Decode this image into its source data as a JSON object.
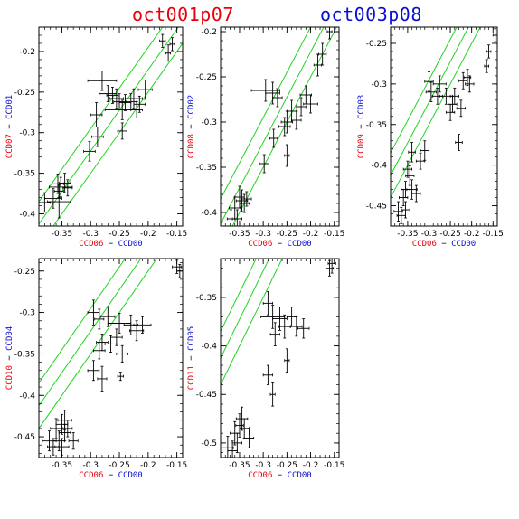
{
  "titles": {
    "left": {
      "text": "oct001p07",
      "color": "#e8000b"
    },
    "right": {
      "text": "oct003p08",
      "color": "#0a0fd0"
    }
  },
  "colors": {
    "red": "#e8000b",
    "blue": "#0a0fd0",
    "lines": "#21d321",
    "points": "#000000"
  },
  "chart_data": [
    {
      "type": "scatter",
      "xlabel": [
        {
          "text": "CCD06",
          "color": "red"
        },
        {
          "text": " − ",
          "color": "black"
        },
        {
          "text": "CCD00",
          "color": "blue"
        }
      ],
      "ylabel": [
        {
          "text": "CCD07",
          "color": "red"
        },
        {
          "text": " − ",
          "color": "black"
        },
        {
          "text": "CCD01",
          "color": "blue"
        }
      ],
      "xlim": [
        -0.39,
        -0.14
      ],
      "ylim": [
        -0.415,
        -0.17
      ],
      "xticks": [
        -0.35,
        -0.3,
        -0.25,
        -0.2,
        -0.15
      ],
      "xticklabels": [
        "-0.35",
        "-0.3",
        "-0.25",
        "-0.2",
        "-0.15"
      ],
      "yticks": [
        -0.4,
        -0.35,
        -0.3,
        -0.25,
        -0.2
      ],
      "yticklabels": [
        "-0.4",
        "-0.35",
        "-0.3",
        "-0.25",
        "-0.2"
      ],
      "lines": [
        {
          "slope": 1,
          "intercept": -0.05
        },
        {
          "slope": 1,
          "intercept": -0.0225
        },
        {
          "slope": 1,
          "intercept": 0.005
        }
      ],
      "points": [
        [
          -0.175,
          -0.187,
          0.005,
          0.008
        ],
        [
          -0.158,
          -0.191,
          0.004,
          0.008
        ],
        [
          -0.165,
          -0.202,
          0.004,
          0.01
        ],
        [
          -0.28,
          -0.236,
          0.025,
          0.012
        ],
        [
          -0.27,
          -0.252,
          0.015,
          0.01
        ],
        [
          -0.262,
          -0.254,
          0.01,
          0.01
        ],
        [
          -0.255,
          -0.258,
          0.012,
          0.012
        ],
        [
          -0.25,
          -0.262,
          0.01,
          0.01
        ],
        [
          -0.24,
          -0.263,
          0.01,
          0.01
        ],
        [
          -0.23,
          -0.262,
          0.01,
          0.01
        ],
        [
          -0.225,
          -0.258,
          0.015,
          0.012
        ],
        [
          -0.215,
          -0.265,
          0.01,
          0.01
        ],
        [
          -0.205,
          -0.247,
          0.012,
          0.012
        ],
        [
          -0.22,
          -0.272,
          0.01,
          0.01
        ],
        [
          -0.245,
          -0.272,
          0.03,
          0.012
        ],
        [
          -0.29,
          -0.278,
          0.01,
          0.015
        ],
        [
          -0.245,
          -0.298,
          0.008,
          0.01
        ],
        [
          -0.288,
          -0.305,
          0.01,
          0.012
        ],
        [
          -0.302,
          -0.323,
          0.01,
          0.012
        ],
        [
          -0.357,
          -0.363,
          0.01,
          0.012
        ],
        [
          -0.352,
          -0.367,
          0.02,
          0.012
        ],
        [
          -0.345,
          -0.362,
          0.01,
          0.012
        ],
        [
          -0.34,
          -0.368,
          0.008,
          0.01
        ],
        [
          -0.355,
          -0.372,
          0.008,
          0.008
        ],
        [
          -0.38,
          -0.386,
          0.01,
          0.012
        ],
        [
          -0.355,
          -0.385,
          0.02,
          0.02
        ],
        [
          -0.365,
          -0.381,
          0.015,
          0.012
        ]
      ]
    },
    {
      "type": "scatter",
      "xlabel": [
        {
          "text": "CCD06",
          "color": "red"
        },
        {
          "text": " − ",
          "color": "black"
        },
        {
          "text": "CCD00",
          "color": "blue"
        }
      ],
      "ylabel": [
        {
          "text": "CCD08",
          "color": "red"
        },
        {
          "text": " − ",
          "color": "black"
        },
        {
          "text": "CCD02",
          "color": "blue"
        }
      ],
      "xlim": [
        -0.39,
        -0.14
      ],
      "ylim": [
        -0.415,
        -0.195
      ],
      "xticks": [
        -0.35,
        -0.3,
        -0.25,
        -0.2,
        -0.15
      ],
      "xticklabels": [
        "-0.35",
        "-0.3",
        "-0.25",
        "-0.2",
        "-0.15"
      ],
      "yticks": [
        -0.4,
        -0.35,
        -0.3,
        -0.25,
        -0.2
      ],
      "yticklabels": [
        "-0.4",
        "-0.35",
        "-0.3",
        "-0.25",
        "-0.2"
      ],
      "lines": [
        {
          "slope": 1,
          "intercept": -0.05
        },
        {
          "slope": 1,
          "intercept": -0.0225
        },
        {
          "slope": 1,
          "intercept": 0.005
        }
      ],
      "points": [
        [
          -0.16,
          -0.2,
          0.005,
          0.008
        ],
        [
          -0.175,
          -0.225,
          0.008,
          0.012
        ],
        [
          -0.185,
          -0.237,
          0.008,
          0.012
        ],
        [
          -0.295,
          -0.265,
          0.03,
          0.012
        ],
        [
          -0.28,
          -0.268,
          0.015,
          0.012
        ],
        [
          -0.27,
          -0.273,
          0.01,
          0.01
        ],
        [
          -0.21,
          -0.27,
          0.012,
          0.01
        ],
        [
          -0.2,
          -0.28,
          0.015,
          0.01
        ],
        [
          -0.22,
          -0.283,
          0.01,
          0.01
        ],
        [
          -0.24,
          -0.288,
          0.01,
          0.012
        ],
        [
          -0.25,
          -0.3,
          0.012,
          0.012
        ],
        [
          -0.23,
          -0.298,
          0.01,
          0.01
        ],
        [
          -0.255,
          -0.305,
          0.012,
          0.01
        ],
        [
          -0.278,
          -0.318,
          0.008,
          0.01
        ],
        [
          -0.25,
          -0.337,
          0.005,
          0.012
        ],
        [
          -0.298,
          -0.346,
          0.01,
          0.01
        ],
        [
          -0.35,
          -0.383,
          0.01,
          0.012
        ],
        [
          -0.345,
          -0.387,
          0.012,
          0.012
        ],
        [
          -0.34,
          -0.39,
          0.01,
          0.01
        ],
        [
          -0.36,
          -0.395,
          0.012,
          0.012
        ],
        [
          -0.368,
          -0.407,
          0.008,
          0.01
        ],
        [
          -0.355,
          -0.407,
          0.01,
          0.01
        ],
        [
          -0.335,
          -0.385,
          0.01,
          0.008
        ]
      ]
    },
    {
      "type": "scatter",
      "xlabel": [
        {
          "text": "CCD06",
          "color": "red"
        },
        {
          "text": " − ",
          "color": "black"
        },
        {
          "text": "CCD00",
          "color": "blue"
        }
      ],
      "ylabel": [
        {
          "text": "CCD09",
          "color": "red"
        },
        {
          "text": " − ",
          "color": "black"
        },
        {
          "text": "CCD03",
          "color": "blue"
        }
      ],
      "xlim": [
        -0.39,
        -0.14
      ],
      "ylim": [
        -0.475,
        -0.23
      ],
      "xticks": [
        -0.35,
        -0.3,
        -0.25,
        -0.2,
        -0.15
      ],
      "xticklabels": [
        "-0.35",
        "-0.3",
        "-0.25",
        "-0.2",
        "-0.15"
      ],
      "yticks": [
        -0.45,
        -0.4,
        -0.35,
        -0.3,
        -0.25
      ],
      "yticklabels": [
        "-0.45",
        "-0.4",
        "-0.35",
        "-0.3",
        "-0.25"
      ],
      "lines": [
        {
          "slope": 1,
          "intercept": -0.05
        },
        {
          "slope": 1,
          "intercept": -0.0225
        },
        {
          "slope": 1,
          "intercept": 0.005
        }
      ],
      "points": [
        [
          -0.145,
          -0.24,
          0.005,
          0.008
        ],
        [
          -0.16,
          -0.26,
          0.005,
          0.008
        ],
        [
          -0.165,
          -0.278,
          0.005,
          0.008
        ],
        [
          -0.21,
          -0.292,
          0.008,
          0.01
        ],
        [
          -0.22,
          -0.296,
          0.01,
          0.01
        ],
        [
          -0.205,
          -0.3,
          0.01,
          0.01
        ],
        [
          -0.3,
          -0.297,
          0.01,
          0.012
        ],
        [
          -0.275,
          -0.3,
          0.015,
          0.01
        ],
        [
          -0.295,
          -0.31,
          0.012,
          0.012
        ],
        [
          -0.28,
          -0.315,
          0.012,
          0.01
        ],
        [
          -0.26,
          -0.315,
          0.015,
          0.01
        ],
        [
          -0.24,
          -0.315,
          0.01,
          0.01
        ],
        [
          -0.245,
          -0.325,
          0.01,
          0.01
        ],
        [
          -0.25,
          -0.335,
          0.01,
          0.01
        ],
        [
          -0.225,
          -0.33,
          0.01,
          0.01
        ],
        [
          -0.23,
          -0.372,
          0.008,
          0.01
        ],
        [
          -0.31,
          -0.382,
          0.01,
          0.012
        ],
        [
          -0.34,
          -0.384,
          0.008,
          0.012
        ],
        [
          -0.32,
          -0.395,
          0.01,
          0.01
        ],
        [
          -0.35,
          -0.405,
          0.01,
          0.01
        ],
        [
          -0.345,
          -0.413,
          0.01,
          0.012
        ],
        [
          -0.34,
          -0.43,
          0.012,
          0.012
        ],
        [
          -0.33,
          -0.435,
          0.01,
          0.01
        ],
        [
          -0.355,
          -0.43,
          0.01,
          0.01
        ],
        [
          -0.36,
          -0.44,
          0.01,
          0.01
        ],
        [
          -0.372,
          -0.457,
          0.01,
          0.012
        ],
        [
          -0.365,
          -0.462,
          0.01,
          0.01
        ],
        [
          -0.355,
          -0.455,
          0.01,
          0.01
        ]
      ]
    },
    {
      "type": "scatter",
      "xlabel": [
        {
          "text": "CCD06",
          "color": "red"
        },
        {
          "text": " − ",
          "color": "black"
        },
        {
          "text": "CCD00",
          "color": "blue"
        }
      ],
      "ylabel": [
        {
          "text": "CCD10",
          "color": "red"
        },
        {
          "text": " − ",
          "color": "black"
        },
        {
          "text": "CCD04",
          "color": "blue"
        }
      ],
      "xlim": [
        -0.39,
        -0.14
      ],
      "ylim": [
        -0.475,
        -0.235
      ],
      "xticks": [
        -0.35,
        -0.3,
        -0.25,
        -0.2,
        -0.15
      ],
      "xticklabels": [
        "-0.35",
        "-0.3",
        "-0.25",
        "-0.2",
        "-0.15"
      ],
      "yticks": [
        -0.45,
        -0.4,
        -0.35,
        -0.3,
        -0.25
      ],
      "yticklabels": [
        "-0.45",
        "-0.4",
        "-0.35",
        "-0.3",
        "-0.25"
      ],
      "lines": [
        {
          "slope": 1,
          "intercept": -0.05
        },
        {
          "slope": 1,
          "intercept": -0.0225
        },
        {
          "slope": 1,
          "intercept": 0.005
        }
      ],
      "points": [
        [
          -0.15,
          -0.245,
          0.008,
          0.008
        ],
        [
          -0.145,
          -0.25,
          0.005,
          0.008
        ],
        [
          -0.295,
          -0.3,
          0.01,
          0.015
        ],
        [
          -0.285,
          -0.308,
          0.008,
          0.012
        ],
        [
          -0.27,
          -0.305,
          0.012,
          0.012
        ],
        [
          -0.25,
          -0.313,
          0.02,
          0.012
        ],
        [
          -0.23,
          -0.315,
          0.012,
          0.012
        ],
        [
          -0.21,
          -0.315,
          0.015,
          0.01
        ],
        [
          -0.22,
          -0.322,
          0.012,
          0.012
        ],
        [
          -0.255,
          -0.33,
          0.01,
          0.01
        ],
        [
          -0.265,
          -0.338,
          0.01,
          0.01
        ],
        [
          -0.28,
          -0.336,
          0.01,
          0.01
        ],
        [
          -0.285,
          -0.346,
          0.01,
          0.01
        ],
        [
          -0.245,
          -0.35,
          0.01,
          0.01
        ],
        [
          -0.295,
          -0.37,
          0.01,
          0.012
        ],
        [
          -0.28,
          -0.38,
          0.008,
          0.015
        ],
        [
          -0.248,
          -0.377,
          0.005,
          0.005
        ],
        [
          -0.345,
          -0.43,
          0.012,
          0.012
        ],
        [
          -0.35,
          -0.435,
          0.01,
          0.012
        ],
        [
          -0.34,
          -0.44,
          0.008,
          0.01
        ],
        [
          -0.36,
          -0.44,
          0.01,
          0.012
        ],
        [
          -0.372,
          -0.455,
          0.012,
          0.012
        ],
        [
          -0.355,
          -0.455,
          0.01,
          0.012
        ],
        [
          -0.35,
          -0.462,
          0.012,
          0.01
        ],
        [
          -0.365,
          -0.462,
          0.01,
          0.01
        ],
        [
          -0.33,
          -0.455,
          0.008,
          0.01
        ],
        [
          -0.345,
          -0.445,
          0.01,
          0.01
        ]
      ]
    },
    {
      "type": "scatter",
      "xlabel": [
        {
          "text": "CCD06",
          "color": "red"
        },
        {
          "text": " − ",
          "color": "black"
        },
        {
          "text": "CCD00",
          "color": "blue"
        }
      ],
      "ylabel": [
        {
          "text": "CCD11",
          "color": "red"
        },
        {
          "text": " − ",
          "color": "black"
        },
        {
          "text": "CCD05",
          "color": "blue"
        }
      ],
      "xlim": [
        -0.39,
        -0.14
      ],
      "ylim": [
        -0.515,
        -0.31
      ],
      "xticks": [
        -0.35,
        -0.3,
        -0.25,
        -0.2,
        -0.15
      ],
      "xticklabels": [
        "-0.35",
        "-0.3",
        "-0.25",
        "-0.2",
        "-0.15"
      ],
      "yticks": [
        -0.5,
        -0.45,
        -0.4,
        -0.35
      ],
      "yticklabels": [
        "-0.5",
        "-0.45",
        "-0.4",
        "-0.35"
      ],
      "lines": [
        {
          "slope": 1,
          "intercept": -0.05
        },
        {
          "slope": 1,
          "intercept": -0.0225
        },
        {
          "slope": 1,
          "intercept": 0.005
        }
      ],
      "points": [
        [
          -0.155,
          -0.315,
          0.008,
          0.01
        ],
        [
          -0.16,
          -0.32,
          0.008,
          0.008
        ],
        [
          -0.29,
          -0.356,
          0.01,
          0.012
        ],
        [
          -0.28,
          -0.37,
          0.025,
          0.012
        ],
        [
          -0.265,
          -0.372,
          0.015,
          0.012
        ],
        [
          -0.24,
          -0.37,
          0.01,
          0.01
        ],
        [
          -0.255,
          -0.38,
          0.012,
          0.012
        ],
        [
          -0.23,
          -0.38,
          0.012,
          0.01
        ],
        [
          -0.215,
          -0.382,
          0.012,
          0.01
        ],
        [
          -0.275,
          -0.388,
          0.01,
          0.012
        ],
        [
          -0.25,
          -0.415,
          0.005,
          0.012
        ],
        [
          -0.29,
          -0.43,
          0.01,
          0.01
        ],
        [
          -0.28,
          -0.45,
          0.005,
          0.012
        ],
        [
          -0.345,
          -0.475,
          0.012,
          0.012
        ],
        [
          -0.35,
          -0.482,
          0.008,
          0.012
        ],
        [
          -0.34,
          -0.485,
          0.01,
          0.01
        ],
        [
          -0.36,
          -0.49,
          0.01,
          0.012
        ],
        [
          -0.375,
          -0.505,
          0.012,
          0.012
        ],
        [
          -0.365,
          -0.508,
          0.01,
          0.01
        ],
        [
          -0.33,
          -0.495,
          0.01,
          0.01
        ],
        [
          -0.355,
          -0.5,
          0.01,
          0.01
        ]
      ]
    }
  ]
}
